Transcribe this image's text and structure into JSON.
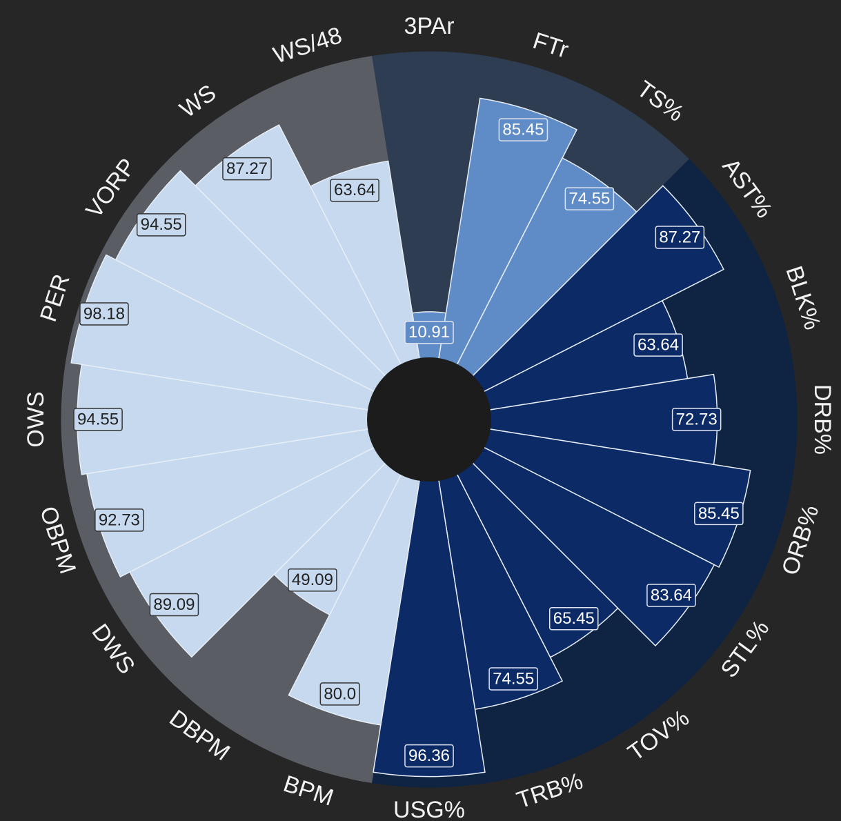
{
  "chart_data": {
    "type": "polar-bar",
    "categories": [
      "3PAr",
      "FTr",
      "TS%",
      "AST%",
      "BLK%",
      "DRB%",
      "ORB%",
      "STL%",
      "TOV%",
      "TRB%",
      "USG%",
      "BPM",
      "DBPM",
      "DWS",
      "OBPM",
      "OWS",
      "PER",
      "VORP",
      "WS",
      "WS/48"
    ],
    "values": [
      10.91,
      85.45,
      74.55,
      87.27,
      63.64,
      72.73,
      85.45,
      83.64,
      65.45,
      74.55,
      96.36,
      80,
      49.09,
      89.09,
      92.73,
      94.55,
      98.18,
      94.55,
      87.27,
      63.64
    ],
    "value_labels": [
      "10.91",
      "85.45",
      "74.55",
      "87.27",
      "63.64",
      "72.73",
      "85.45",
      "83.64",
      "65.45",
      "74.55",
      "96.36",
      "80.0",
      "49.09",
      "89.09",
      "92.73",
      "94.55",
      "98.18",
      "94.55",
      "87.27",
      "63.64"
    ],
    "bar_colors": [
      "#5f8cc6",
      "#5f8cc6",
      "#5f8cc6",
      "#0b2a66",
      "#0b2a66",
      "#0b2a66",
      "#0b2a66",
      "#0b2a66",
      "#0b2a66",
      "#0b2a66",
      "#0b2a66",
      "#c6d9ee",
      "#c6d9ee",
      "#c6d9ee",
      "#c6d9ee",
      "#c6d9ee",
      "#c6d9ee",
      "#c6d9ee",
      "#c6d9ee",
      "#c6d9ee"
    ],
    "sector_colors": [
      "#2e3d52",
      "#2e3d52",
      "#2e3d52",
      "#0f2343",
      "#0f2343",
      "#0f2343",
      "#0f2343",
      "#0f2343",
      "#0f2343",
      "#0f2343",
      "#0f2343",
      "#5a5e64",
      "#5a5e64",
      "#5a5e64",
      "#5a5e64",
      "#5a5e64",
      "#5a5e64",
      "#5a5e64",
      "#5a5e64",
      "#5a5e64"
    ],
    "rlim": [
      0,
      100
    ]
  }
}
